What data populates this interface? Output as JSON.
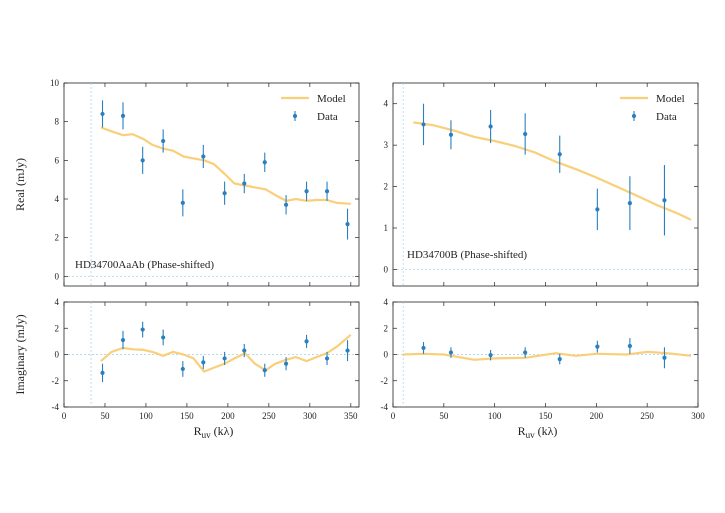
{
  "colors": {
    "model": "#f9cf7a",
    "data": "#2b7fbf",
    "refline": "#9fd0e6",
    "axis": "#222222"
  },
  "chart_data": [
    {
      "type": "scatter",
      "id": "aa_real",
      "title": "",
      "ylabel": "Real (mJy)",
      "xlabel": "",
      "panel_label": "HD34700AaAb (Phase-shifted)",
      "xlim": [
        0,
        360
      ],
      "ylim": [
        -0.5,
        10
      ],
      "xticks": [
        0,
        50,
        100,
        150,
        200,
        250,
        300,
        350
      ],
      "yticks": [
        0,
        2,
        4,
        6,
        8,
        10
      ],
      "show_xticklabels": false,
      "vline": 33,
      "hline": 0,
      "legend": {
        "position": "top-right",
        "model_label": "Model",
        "data_label": "Data"
      },
      "model": {
        "name": "Model",
        "x": [
          45,
          58,
          72,
          84,
          97,
          108,
          121,
          133,
          146,
          158,
          171,
          183,
          196,
          208,
          221,
          233,
          246,
          258,
          271,
          283,
          296,
          308,
          321,
          333,
          350
        ],
        "y": [
          7.7,
          7.5,
          7.3,
          7.35,
          7.1,
          6.8,
          6.6,
          6.5,
          6.2,
          6.1,
          6.0,
          5.8,
          5.3,
          4.8,
          4.7,
          4.6,
          4.5,
          4.2,
          3.9,
          4.0,
          3.9,
          3.95,
          3.95,
          3.8,
          3.75
        ]
      },
      "data": {
        "name": "Data",
        "x": [
          47,
          72,
          96,
          121,
          145,
          170,
          196,
          220,
          245,
          271,
          296,
          321,
          346
        ],
        "y": [
          8.4,
          8.3,
          6.0,
          7.0,
          3.8,
          6.2,
          4.3,
          4.8,
          5.9,
          3.7,
          4.4,
          4.4,
          2.7
        ],
        "err": [
          0.7,
          0.7,
          0.7,
          0.6,
          0.7,
          0.6,
          0.6,
          0.5,
          0.5,
          0.5,
          0.5,
          0.5,
          0.8
        ]
      }
    },
    {
      "type": "scatter",
      "id": "aa_imag",
      "title": "",
      "ylabel": "Imaginary (mJy)",
      "xlabel": "R",
      "xlabel_sub": "uv",
      "xlabel_unit": " (kλ)",
      "xlim": [
        0,
        360
      ],
      "ylim": [
        -4,
        4
      ],
      "xticks": [
        0,
        50,
        100,
        150,
        200,
        250,
        300,
        350
      ],
      "yticks": [
        -4,
        -2,
        0,
        2,
        4
      ],
      "show_xticklabels": true,
      "vline": 33,
      "hline": 0,
      "model": {
        "name": "Model",
        "x": [
          45,
          58,
          72,
          84,
          97,
          108,
          121,
          133,
          146,
          158,
          171,
          183,
          196,
          208,
          221,
          233,
          246,
          258,
          271,
          283,
          296,
          308,
          321,
          333,
          350
        ],
        "y": [
          -0.5,
          0.2,
          0.5,
          0.4,
          0.35,
          0.2,
          -0.1,
          0.2,
          0.0,
          -0.3,
          -1.3,
          -1.0,
          -0.7,
          -0.3,
          0.1,
          -0.7,
          -1.2,
          -0.7,
          -0.4,
          -0.2,
          -0.5,
          -0.2,
          0.1,
          0.6,
          1.5
        ]
      },
      "data": {
        "name": "Data",
        "x": [
          47,
          72,
          96,
          121,
          145,
          170,
          196,
          220,
          245,
          271,
          296,
          321,
          346
        ],
        "y": [
          -1.4,
          1.1,
          1.9,
          1.3,
          -1.1,
          -0.6,
          -0.3,
          0.3,
          -1.2,
          -0.7,
          1.0,
          -0.3,
          0.3
        ],
        "err": [
          0.7,
          0.7,
          0.6,
          0.6,
          0.6,
          0.5,
          0.5,
          0.5,
          0.5,
          0.5,
          0.5,
          0.5,
          0.8
        ]
      }
    },
    {
      "type": "scatter",
      "id": "b_real",
      "title": "",
      "ylabel": "",
      "xlabel": "",
      "panel_label": "HD34700B (Phase-shifted)",
      "xlim": [
        0,
        300
      ],
      "ylim": [
        -0.4,
        4.5
      ],
      "xticks": [
        0,
        50,
        100,
        150,
        200,
        250,
        300
      ],
      "yticks": [
        0,
        1,
        2,
        3,
        4
      ],
      "show_xticklabels": false,
      "vline": 10,
      "hline": 0,
      "legend": {
        "position": "top-right",
        "model_label": "Model",
        "data_label": "Data"
      },
      "model": {
        "name": "Model",
        "x": [
          20,
          40,
          60,
          80,
          100,
          120,
          140,
          160,
          180,
          200,
          220,
          240,
          260,
          280,
          293
        ],
        "y": [
          3.55,
          3.48,
          3.35,
          3.2,
          3.1,
          2.98,
          2.82,
          2.6,
          2.42,
          2.22,
          2.0,
          1.78,
          1.55,
          1.35,
          1.2
        ]
      },
      "data": {
        "name": "Data",
        "x": [
          30,
          57,
          96,
          130,
          164,
          201,
          233,
          267
        ],
        "y": [
          3.5,
          3.25,
          3.45,
          3.27,
          2.78,
          1.45,
          1.6,
          1.67
        ],
        "err": [
          0.5,
          0.35,
          0.4,
          0.5,
          0.45,
          0.5,
          0.65,
          0.85
        ]
      }
    },
    {
      "type": "scatter",
      "id": "b_imag",
      "title": "",
      "ylabel": "",
      "xlabel": "R",
      "xlabel_sub": "uv",
      "xlabel_unit": " (kλ)",
      "xlim": [
        0,
        300
      ],
      "ylim": [
        -4,
        4
      ],
      "xticks": [
        0,
        50,
        100,
        150,
        200,
        250,
        300
      ],
      "yticks": [
        -4,
        -2,
        0,
        2,
        4
      ],
      "show_xticklabels": true,
      "vline": 10,
      "hline": 0,
      "model": {
        "name": "Model",
        "x": [
          10,
          30,
          50,
          80,
          100,
          130,
          160,
          180,
          200,
          230,
          250,
          270,
          293
        ],
        "y": [
          0.0,
          0.05,
          0.0,
          -0.4,
          -0.3,
          -0.25,
          0.1,
          -0.1,
          0.05,
          0.0,
          0.2,
          0.1,
          -0.1
        ]
      },
      "data": {
        "name": "Data",
        "x": [
          30,
          57,
          96,
          130,
          164,
          201,
          233,
          267
        ],
        "y": [
          0.5,
          0.15,
          -0.05,
          0.15,
          -0.35,
          0.6,
          0.65,
          -0.25
        ],
        "err": [
          0.45,
          0.4,
          0.4,
          0.4,
          0.4,
          0.45,
          0.6,
          0.8
        ]
      }
    }
  ]
}
